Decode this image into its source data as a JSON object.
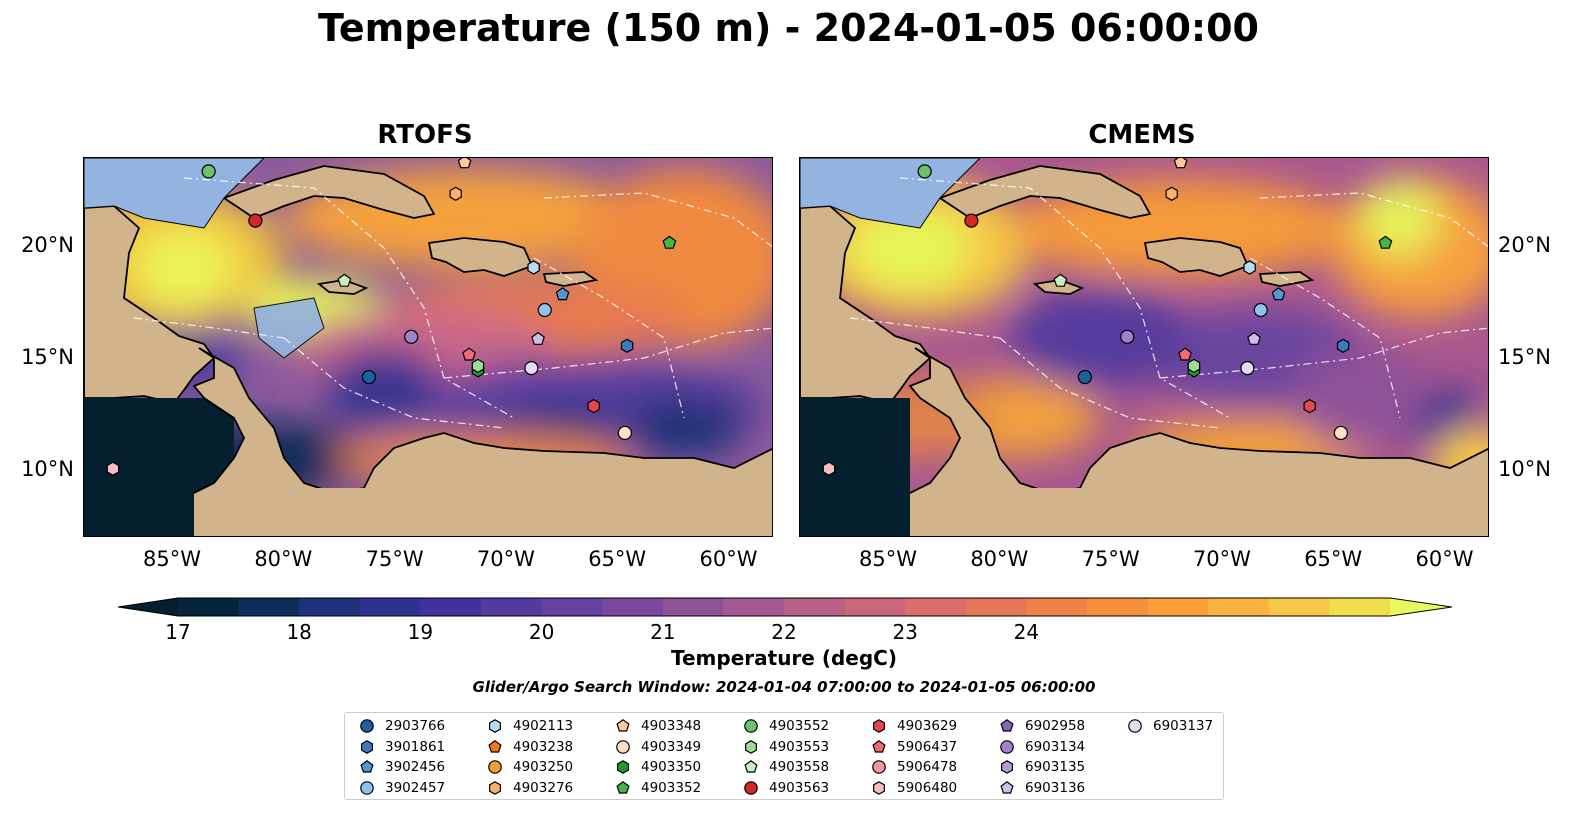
{
  "title": "Temperature (150 m) - 2024-01-05 06:00:00",
  "panels": [
    {
      "name": "RTOFS"
    },
    {
      "name": "CMEMS"
    }
  ],
  "axes": {
    "lon_ticks": [
      "85°W",
      "80°W",
      "75°W",
      "70°W",
      "65°W",
      "60°W"
    ],
    "lat_ticks": [
      "20°N",
      "15°N",
      "10°N"
    ]
  },
  "colorbar": {
    "label": "Temperature (degC)",
    "ticks": [
      "17",
      "18",
      "19",
      "20",
      "21",
      "22",
      "23",
      "24"
    ],
    "colors": [
      "#03243a",
      "#0e2c5a",
      "#1d3278",
      "#2e3190",
      "#40319c",
      "#523a9e",
      "#65429f",
      "#7a499d",
      "#8e5198",
      "#a45891",
      "#b75f86",
      "#c96679",
      "#d96e6a",
      "#e57659",
      "#f08147",
      "#f78f3c",
      "#fba03b",
      "#fab341",
      "#f7c946",
      "#f0df4a"
    ],
    "min_color": "#04202f",
    "max_color": "#e8fa5b"
  },
  "search_window": "Glider/Argo Search Window: 2024-01-04 07:00:00 to 2024-01-05 06:00:00",
  "legend": [
    {
      "id": "2903766",
      "marker": "circle",
      "color": "#1f5fa0"
    },
    {
      "id": "3901861",
      "marker": "hexagon",
      "color": "#3c7ac0"
    },
    {
      "id": "3902456",
      "marker": "pentagon",
      "color": "#4f97d6"
    },
    {
      "id": "3902457",
      "marker": "circle",
      "color": "#8fc3ea"
    },
    {
      "id": "4902113",
      "marker": "hexagon",
      "color": "#b9dcf5"
    },
    {
      "id": "4903238",
      "marker": "pentagon",
      "color": "#f07b12"
    },
    {
      "id": "4903250",
      "marker": "circle",
      "color": "#f59a3a"
    },
    {
      "id": "4903276",
      "marker": "hexagon",
      "color": "#f9b26c"
    },
    {
      "id": "4903348",
      "marker": "pentagon",
      "color": "#fbc99a"
    },
    {
      "id": "4903349",
      "marker": "circle",
      "color": "#fde0c6"
    },
    {
      "id": "4903350",
      "marker": "hexagon",
      "color": "#1e9a2e"
    },
    {
      "id": "4903352",
      "marker": "pentagon",
      "color": "#45b548"
    },
    {
      "id": "4903552",
      "marker": "circle",
      "color": "#6cc46a"
    },
    {
      "id": "4903553",
      "marker": "hexagon",
      "color": "#9ddc93"
    },
    {
      "id": "4903558",
      "marker": "pentagon",
      "color": "#c9efc1"
    },
    {
      "id": "4903563",
      "marker": "circle",
      "color": "#d62728"
    },
    {
      "id": "4903629",
      "marker": "hexagon",
      "color": "#e2484c"
    },
    {
      "id": "5906437",
      "marker": "pentagon",
      "color": "#ee6b72"
    },
    {
      "id": "5906478",
      "marker": "circle",
      "color": "#f4989a"
    },
    {
      "id": "5906480",
      "marker": "hexagon",
      "color": "#f7bcbd"
    },
    {
      "id": "6902958",
      "marker": "pentagon",
      "color": "#8a62b8"
    },
    {
      "id": "6903134",
      "marker": "circle",
      "color": "#a07fcb"
    },
    {
      "id": "6903135",
      "marker": "hexagon",
      "color": "#b89ad9"
    },
    {
      "id": "6903136",
      "marker": "pentagon",
      "color": "#d0bce8"
    },
    {
      "id": "6903137",
      "marker": "circle",
      "color": "#e7daf4"
    }
  ],
  "floats": [
    {
      "id": "2903766",
      "lon": -76.2,
      "lat": 14.2
    },
    {
      "id": "3901861",
      "lon": -64.6,
      "lat": 15.6
    },
    {
      "id": "3902456",
      "lon": -67.5,
      "lat": 17.9
    },
    {
      "id": "3902457",
      "lon": -68.3,
      "lat": 17.2
    },
    {
      "id": "4902113",
      "lon": -68.8,
      "lat": 19.1
    },
    {
      "id": "4903276",
      "lon": -72.3,
      "lat": 22.4
    },
    {
      "id": "4903348",
      "lon": -71.9,
      "lat": 23.8
    },
    {
      "id": "4903349",
      "lon": -64.7,
      "lat": 11.7
    },
    {
      "id": "4903350",
      "lon": -71.3,
      "lat": 14.5
    },
    {
      "id": "4903352",
      "lon": -62.7,
      "lat": 20.2
    },
    {
      "id": "4903553",
      "lon": -71.3,
      "lat": 14.7
    },
    {
      "id": "4903558",
      "lon": -77.3,
      "lat": 18.5
    },
    {
      "id": "4903563",
      "lon": -81.3,
      "lat": 21.2
    },
    {
      "id": "4903629",
      "lon": -66.1,
      "lat": 12.9
    },
    {
      "id": "5906437",
      "lon": -71.7,
      "lat": 15.2
    },
    {
      "id": "5906480",
      "lon": -87.7,
      "lat": 10.1
    },
    {
      "id": "6903134",
      "lon": -74.3,
      "lat": 16.0
    },
    {
      "id": "6903136",
      "lon": -68.6,
      "lat": 15.9
    },
    {
      "id": "6903137",
      "lon": -68.9,
      "lat": 14.6
    },
    {
      "id": "4903552",
      "lon": -83.4,
      "lat": 23.4
    }
  ]
}
